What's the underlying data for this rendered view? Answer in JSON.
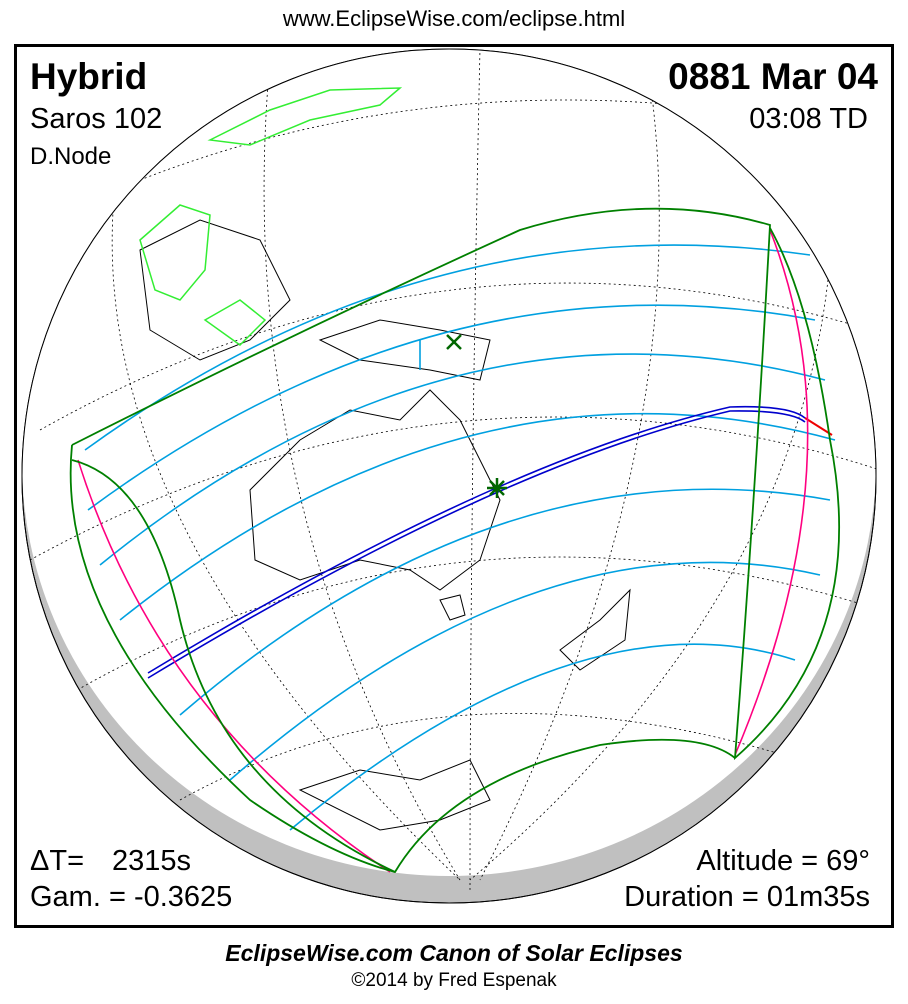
{
  "header_url": "www.EclipseWise.com/eclipse.html",
  "eclipse": {
    "type": "Hybrid",
    "date": "0881 Mar 04",
    "saros": "Saros 102",
    "time": "03:08 TD",
    "node": "D.Node",
    "delta_t_label": "ΔT=",
    "delta_t_value": "2315s",
    "gamma": "Gam. = -0.3625",
    "altitude": "Altitude = 69°",
    "duration": "Duration = 01m35s"
  },
  "footer": {
    "title": "EclipseWise.com Canon of Solar Eclipses",
    "copyright": "©2014 by Fred Espenak"
  },
  "colors": {
    "central_path": "#0000cc",
    "penumbral_limits": "#008000",
    "partial_lines": "#00a0e0",
    "rise_set": "#ff0080",
    "land_highlight": "#33ee33",
    "night_shade": "#c0c0c0"
  },
  "icons": [
    "greatest-eclipse-star-icon",
    "subsolar-x-icon"
  ]
}
